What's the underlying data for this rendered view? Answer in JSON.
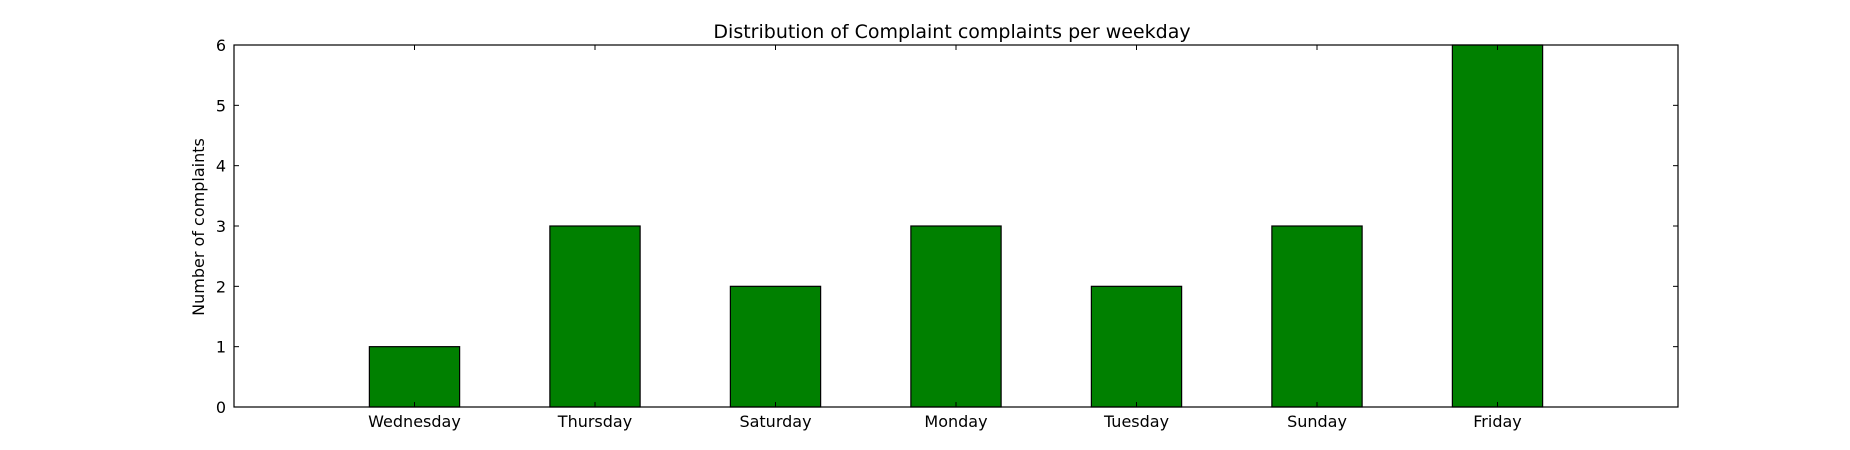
{
  "chart_data": {
    "type": "bar",
    "title": "Distribution of  Complaint complaints per weekday",
    "xlabel": "",
    "ylabel": "Number of complaints",
    "categories": [
      "Wednesday",
      "Thursday",
      "Saturday",
      "Monday",
      "Tuesday",
      "Sunday",
      "Friday"
    ],
    "values": [
      1,
      3,
      2,
      3,
      2,
      3,
      6
    ],
    "ylim": [
      0,
      6
    ],
    "xlim": [
      -1,
      7
    ],
    "yticks": [
      0,
      1,
      2,
      3,
      4,
      5,
      6
    ],
    "grid": false,
    "bar_color": "#008000"
  }
}
